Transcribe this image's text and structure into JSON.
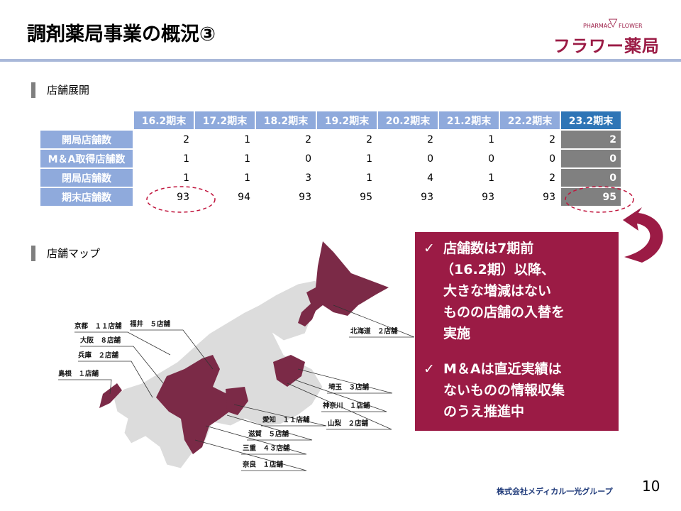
{
  "header": {
    "title": "調剤薬局事業の概況③"
  },
  "logo": {
    "en_left": "PHARMAC",
    "en_right": "FLOWER",
    "name": "フラワー薬局"
  },
  "section1": {
    "title": "店舗展開"
  },
  "table": {
    "columns": [
      "16.2期末",
      "17.2期末",
      "18.2期末",
      "19.2期末",
      "20.2期末",
      "21.2期末",
      "22.2期末",
      "23.2期末"
    ],
    "rows": [
      {
        "label": "開局店舗数",
        "values": [
          2,
          1,
          2,
          2,
          2,
          1,
          2,
          2
        ]
      },
      {
        "label": "M＆A取得店舗数",
        "values": [
          1,
          1,
          0,
          1,
          0,
          0,
          0,
          0
        ]
      },
      {
        "label": "閉局店舗数",
        "values": [
          1,
          1,
          3,
          1,
          4,
          1,
          2,
          0
        ]
      },
      {
        "label": "期末店舗数",
        "values": [
          93,
          94,
          93,
          95,
          93,
          93,
          93,
          95
        ]
      }
    ]
  },
  "section2": {
    "title": "店舗マップ"
  },
  "map_labels": [
    "京都　１１店舗",
    "福井　５店舗",
    "大阪　８店舗",
    "兵庫　２店舗",
    "島根　１店舗",
    "北海道　２店舗",
    "埼玉　３店舗",
    "神奈川　１店舗",
    "山梨　２店舗",
    "愛知　１１店舗",
    "滋賀　５店舗",
    "三重　４３店舗",
    "奈良　１店舗"
  ],
  "callout": {
    "points": [
      [
        "店舗数は7期前",
        "（16.2期）以降、",
        "大きな増減はない",
        "ものの店舗の入替を",
        "実施"
      ],
      [
        "M＆Aは直近実績は",
        "ないものの情報収集",
        "のうえ推進中"
      ]
    ]
  },
  "footer": {
    "company": "株式会社メディカル一光グループ",
    "page": 10
  }
}
